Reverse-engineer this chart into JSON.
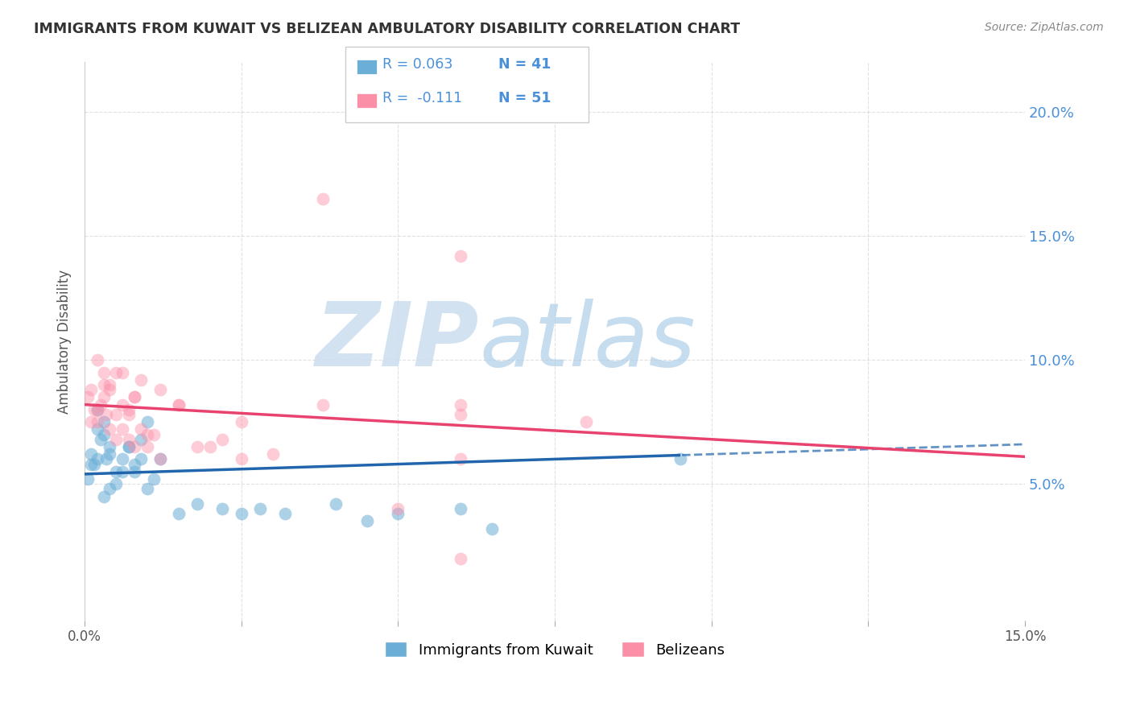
{
  "title": "IMMIGRANTS FROM KUWAIT VS BELIZEAN AMBULATORY DISABILITY CORRELATION CHART",
  "source": "Source: ZipAtlas.com",
  "ylabel": "Ambulatory Disability",
  "right_yticks": [
    "5.0%",
    "10.0%",
    "15.0%",
    "20.0%"
  ],
  "right_ytick_vals": [
    0.05,
    0.1,
    0.15,
    0.2
  ],
  "xlim": [
    0.0,
    0.15
  ],
  "ylim": [
    -0.005,
    0.22
  ],
  "legend_R1": "0.063",
  "legend_N1": "41",
  "legend_R2": "-0.111",
  "legend_N2": "51",
  "color_blue": "#6baed6",
  "color_pink": "#fc8fa8",
  "color_line_blue": "#2166ac",
  "color_line_pink": "#e8436e",
  "color_grid": "#cccccc",
  "color_title": "#333333",
  "color_right_axis": "#4a90d9",
  "blue_x": [
    0.001,
    0.002,
    0.003,
    0.004,
    0.005,
    0.006,
    0.007,
    0.008,
    0.009,
    0.01,
    0.0005,
    0.001,
    0.0015,
    0.002,
    0.0025,
    0.003,
    0.0035,
    0.004,
    0.005,
    0.006,
    0.007,
    0.008,
    0.009,
    0.01,
    0.011,
    0.012,
    0.015,
    0.018,
    0.022,
    0.025,
    0.028,
    0.032,
    0.04,
    0.045,
    0.05,
    0.06,
    0.065,
    0.002,
    0.003,
    0.004,
    0.095
  ],
  "blue_y": [
    0.058,
    0.06,
    0.07,
    0.062,
    0.05,
    0.055,
    0.065,
    0.058,
    0.068,
    0.075,
    0.052,
    0.062,
    0.058,
    0.072,
    0.068,
    0.075,
    0.06,
    0.065,
    0.055,
    0.06,
    0.065,
    0.055,
    0.06,
    0.048,
    0.052,
    0.06,
    0.038,
    0.042,
    0.04,
    0.038,
    0.04,
    0.038,
    0.042,
    0.035,
    0.038,
    0.04,
    0.032,
    0.08,
    0.045,
    0.048,
    0.06
  ],
  "pink_x": [
    0.001,
    0.002,
    0.003,
    0.004,
    0.005,
    0.006,
    0.007,
    0.008,
    0.009,
    0.01,
    0.0005,
    0.001,
    0.0015,
    0.002,
    0.0025,
    0.003,
    0.0035,
    0.004,
    0.005,
    0.006,
    0.007,
    0.008,
    0.009,
    0.01,
    0.011,
    0.012,
    0.015,
    0.018,
    0.022,
    0.025,
    0.002,
    0.003,
    0.004,
    0.005,
    0.006,
    0.007,
    0.008,
    0.012,
    0.015,
    0.02,
    0.025,
    0.03,
    0.038,
    0.038,
    0.05,
    0.06,
    0.06,
    0.06,
    0.08,
    0.06,
    0.06
  ],
  "pink_y": [
    0.075,
    0.08,
    0.085,
    0.09,
    0.095,
    0.082,
    0.078,
    0.085,
    0.092,
    0.07,
    0.085,
    0.088,
    0.08,
    0.075,
    0.082,
    0.09,
    0.078,
    0.072,
    0.068,
    0.095,
    0.08,
    0.085,
    0.072,
    0.065,
    0.07,
    0.06,
    0.082,
    0.065,
    0.068,
    0.075,
    0.1,
    0.095,
    0.088,
    0.078,
    0.072,
    0.068,
    0.065,
    0.088,
    0.082,
    0.065,
    0.06,
    0.062,
    0.165,
    0.082,
    0.04,
    0.06,
    0.082,
    0.078,
    0.075,
    0.142,
    0.02
  ]
}
